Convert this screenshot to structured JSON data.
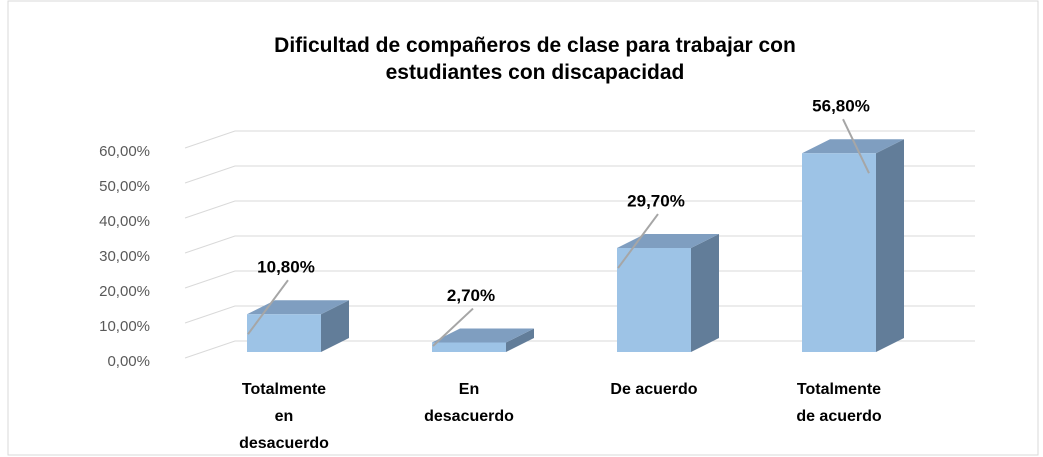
{
  "chart_data": {
    "type": "bar3d",
    "title": "Dificultad de compañeros de clase para trabajar con\nestudiantes con discapacidad",
    "categories": [
      "Totalmente\nen\ndesacuerdo",
      "En\ndesacuerdo",
      "De acuerdo",
      "Totalmente\nde acuerdo"
    ],
    "values": [
      10.8,
      2.7,
      29.7,
      56.8
    ],
    "value_labels": [
      "10,80%",
      "2,70%",
      "29,70%",
      "56,80%"
    ],
    "color": "#9dc3e6",
    "ylim": [
      0,
      60
    ],
    "yticks": [
      {
        "value": 0,
        "label": "0,00%"
      },
      {
        "value": 10,
        "label": "10,00%"
      },
      {
        "value": 20,
        "label": "20,00%"
      },
      {
        "value": 30,
        "label": "30,00%"
      },
      {
        "value": 40,
        "label": "40,00%"
      },
      {
        "value": 50,
        "label": "50,00%"
      },
      {
        "value": 60,
        "label": "60,00%"
      }
    ],
    "grid": true
  }
}
